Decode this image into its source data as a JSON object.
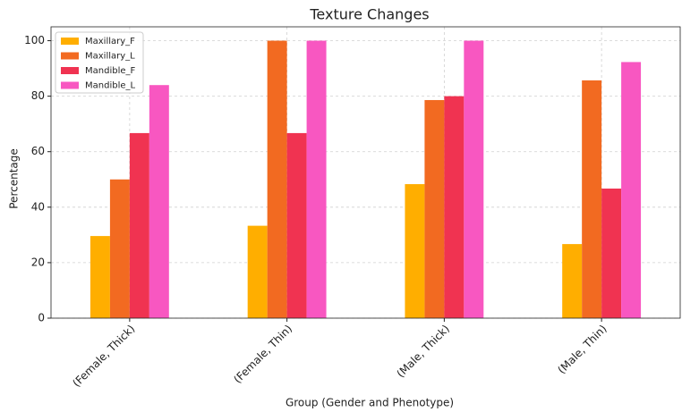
{
  "chart_data": {
    "type": "bar",
    "title": "Texture Changes",
    "x_label": "Group (Gender and Phenotype)",
    "y_label": "Percentage",
    "categories": [
      "(Female, Thick)",
      "(Female, Thin)",
      "(Male, Thick)",
      "(Male, Thin)"
    ],
    "series": [
      {
        "name": "Maxillary_F",
        "color": "#ffae00",
        "values": [
          29.6,
          33.3,
          48.3,
          26.7
        ]
      },
      {
        "name": "Maxillary_L",
        "color": "#f26a21",
        "values": [
          50,
          100,
          78.6,
          85.7
        ]
      },
      {
        "name": "Mandible_F",
        "color": "#f03351",
        "values": [
          66.7,
          66.7,
          80,
          46.7
        ]
      },
      {
        "name": "Mandible_L",
        "color": "#f857c1",
        "values": [
          84,
          100,
          100,
          92.3
        ]
      }
    ],
    "ylim": [
      0,
      105
    ],
    "yticks": [
      0,
      20,
      40,
      60,
      80,
      100
    ],
    "grid": true,
    "legend": "upper left"
  }
}
